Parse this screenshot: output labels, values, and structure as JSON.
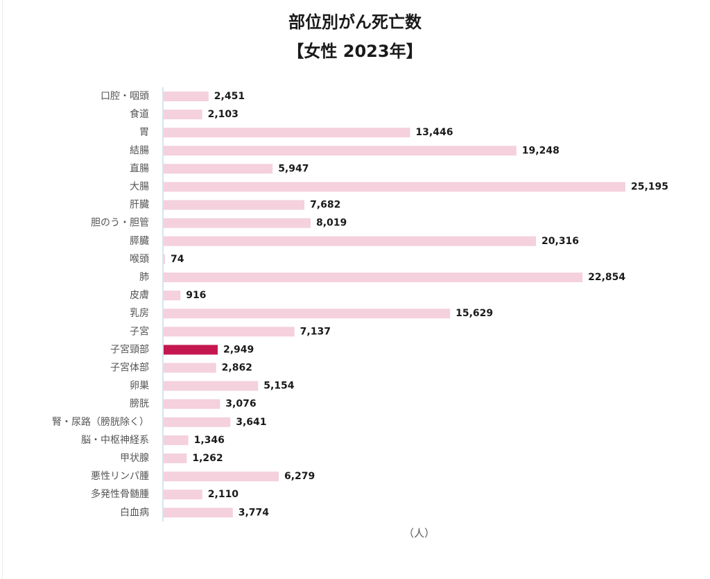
{
  "title_line1": "部位別がん死亡数",
  "title_line2": "【女性 2023年】",
  "unit_label": "（人）",
  "colors": {
    "bar": "#f4d1dc",
    "highlight_bar": "#c4174f",
    "axis": "#aacbe0",
    "category_text": "#555555",
    "value_text": "#1a1a1a"
  },
  "chart_data": {
    "type": "bar",
    "orientation": "horizontal",
    "categories": [
      "口腔・咽頭",
      "食道",
      "胃",
      "結腸",
      "直腸",
      "大腸",
      "肝臓",
      "胆のう・胆管",
      "膵臓",
      "喉頭",
      "肺",
      "皮膚",
      "乳房",
      "子宮",
      "子宮頸部",
      "子宮体部",
      "卵巣",
      "膀胱",
      "腎・尿路（膀胱除く）",
      "脳・中枢神経系",
      "甲状腺",
      "悪性リンパ腫",
      "多発性骨髄腫",
      "白血病"
    ],
    "values": [
      2451,
      2103,
      13446,
      19248,
      5947,
      25195,
      7682,
      8019,
      20316,
      74,
      22854,
      916,
      15629,
      7137,
      2949,
      2862,
      5154,
      3076,
      3641,
      1346,
      1262,
      6279,
      2110,
      3774
    ],
    "value_labels": [
      "2,451",
      "2,103",
      "13,446",
      "19,248",
      "5,947",
      "25,195",
      "7,682",
      "8,019",
      "20,316",
      "74",
      "22,854",
      "916",
      "15,629",
      "7,137",
      "2,949",
      "2,862",
      "5,154",
      "3,076",
      "3,641",
      "1,346",
      "1,262",
      "6,279",
      "2,110",
      "3,774"
    ],
    "highlight_category": "子宮頸部",
    "xlim": [
      0,
      25195
    ],
    "grid": false,
    "legend": "none"
  }
}
